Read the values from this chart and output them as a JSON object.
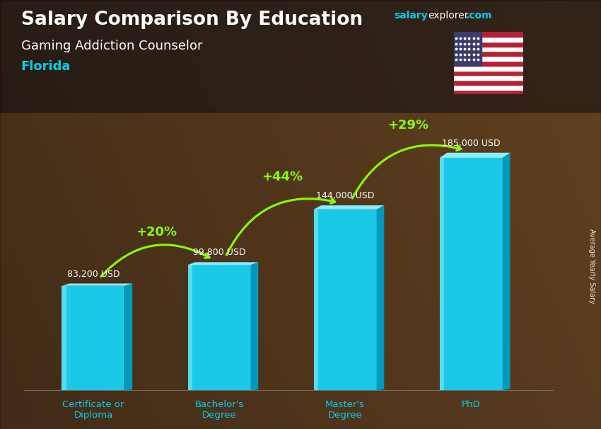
{
  "title_bold": "Salary Comparison By Education",
  "subtitle1": "Gaming Addiction Counselor",
  "subtitle2": "Florida",
  "ylabel": "Average Yearly Salary",
  "categories": [
    "Certificate or\nDiploma",
    "Bachelor's\nDegree",
    "Master's\nDegree",
    "PhD"
  ],
  "values": [
    83200,
    99800,
    144000,
    185000
  ],
  "value_labels": [
    "83,200 USD",
    "99,800 USD",
    "144,000 USD",
    "185,000 USD"
  ],
  "pct_labels": [
    "+20%",
    "+44%",
    "+29%"
  ],
  "bar_front_color": "#1CC8E8",
  "bar_light_color": "#55DDEE",
  "bar_dark_color": "#0099BB",
  "bar_top_color": "#88EEFF",
  "title_color": "#ffffff",
  "subtitle1_color": "#ffffff",
  "subtitle2_color": "#00CFED",
  "value_label_color": "#ffffff",
  "pct_label_color": "#88FF00",
  "arrow_color": "#88FF00",
  "xlabel_color": "#00CFED",
  "ylabel_color": "#ffffff",
  "brand_salary_color": "#00CFED",
  "brand_explorer_color": "#ffffff",
  "brand_dotcom_color": "#00CFED",
  "bar_width": 0.5,
  "ylim_max": 215000,
  "bg_colors": [
    "#6B4226",
    "#8B6040",
    "#A07850",
    "#C09868",
    "#D0A878"
  ],
  "overlay_alpha": 0.35
}
